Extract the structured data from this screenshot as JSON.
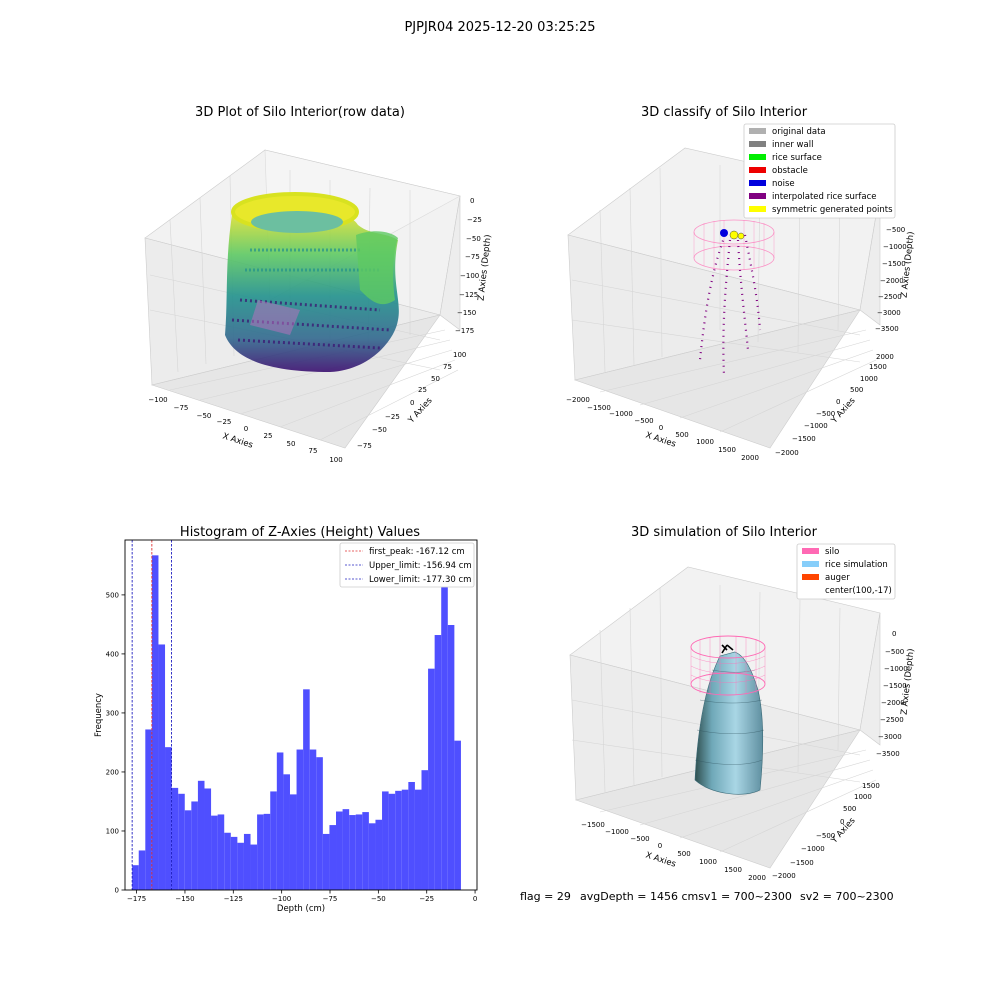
{
  "suptitle": "PJPJR04 2025-12-20 03:25:25",
  "footer": {
    "flag": "flag = 29",
    "avg": "avgDepth = 1456 cmsv1 = 700~2300",
    "sv2": "sv2 = 700~2300"
  },
  "colors": {
    "bar": "#4b4bff",
    "peak_line": "#e03030",
    "limit_line": "#2020c0",
    "silo": "#ff69b4",
    "rice": "#87cefa",
    "auger": "#ff4500",
    "pane": "#f2f2f2",
    "grid": "#d4d4d4"
  },
  "chart_data": [
    {
      "type": "scatter",
      "title": "3D Plot of Silo Interior(row data)",
      "xlabel": "X Axies",
      "ylabel": "Y Axies",
      "zlabel": "Z Axies (Depth)",
      "xticks": [
        "−100",
        "−75",
        "−50",
        "−25",
        "0",
        "25",
        "50",
        "75",
        "100"
      ],
      "yticks": [
        "−75",
        "−50",
        "−25",
        "0",
        "25",
        "50",
        "75",
        "100"
      ],
      "zticks": [
        "0",
        "−25",
        "−50",
        "−75",
        "−100",
        "−125",
        "−150",
        "−175"
      ],
      "colormap": "viridis"
    },
    {
      "type": "scatter",
      "title": "3D classify of Silo Interior",
      "xlabel": "X Axies",
      "ylabel": "Y Axies",
      "zlabel": "Z Axies (Depth)",
      "xticks": [
        "−2000",
        "−1500",
        "−1000",
        "−500",
        "0",
        "500",
        "1000",
        "1500",
        "2000"
      ],
      "yticks": [
        "−2000",
        "−1500",
        "−1000",
        "−500",
        "0",
        "500",
        "1000",
        "1500",
        "2000"
      ],
      "zticks": [
        "−500",
        "−1000",
        "−1500",
        "−2000",
        "−2500",
        "−3000",
        "−3500"
      ],
      "legend": [
        {
          "label": "original data",
          "color": "#b0b0b0"
        },
        {
          "label": "inner wall",
          "color": "#808080"
        },
        {
          "label": "rice surface",
          "color": "#00ee00"
        },
        {
          "label": "obstacle",
          "color": "#ee0000"
        },
        {
          "label": "noise",
          "color": "#0000dd"
        },
        {
          "label": "interpolated rice surface",
          "color": "#800080"
        },
        {
          "label": "symmetric generated points",
          "color": "#ffff00"
        }
      ],
      "legend_position": "top-right"
    },
    {
      "type": "bar",
      "title": "Histogram of Z-Axies (Height) Values",
      "xlabel": "Depth (cm)",
      "ylabel": "Frequency",
      "xlim": [
        -181,
        1
      ],
      "ylim": [
        0,
        593
      ],
      "xticks": [
        -175,
        -150,
        -125,
        -100,
        -75,
        -50,
        -25,
        0
      ],
      "xtick_labels": [
        "−175",
        "−150",
        "−125",
        "−100",
        "−75",
        "−50",
        "−25",
        "0"
      ],
      "yticks": [
        0,
        100,
        200,
        300,
        400,
        500
      ],
      "yticks_labels": [
        "0",
        "100",
        "200",
        "300",
        "400",
        "500"
      ],
      "bin_start": -177.3,
      "bin_width": 3.4,
      "values": [
        42,
        67,
        272,
        567,
        416,
        242,
        173,
        163,
        135,
        150,
        185,
        172,
        126,
        128,
        97,
        90,
        80,
        95,
        77,
        128,
        129,
        167,
        233,
        196,
        162,
        238,
        340,
        238,
        225,
        95,
        110,
        133,
        137,
        127,
        128,
        132,
        113,
        119,
        167,
        163,
        168,
        170,
        183,
        170,
        203,
        375,
        432,
        513,
        449,
        253
      ],
      "vlines": [
        {
          "label": "first_peak: -167.12 cm",
          "x": -167.12,
          "color": "#e03030"
        },
        {
          "label": "Upper_limit: -156.94 cm",
          "x": -156.94,
          "color": "#2020c0"
        },
        {
          "label": "Lower_limit: -177.30 cm",
          "x": -177.3,
          "color": "#2020c0"
        }
      ],
      "legend_position": "top-right"
    },
    {
      "type": "scatter",
      "title": "3D simulation of Silo Interior",
      "xlabel": "X Axies",
      "ylabel": "Y Axies",
      "zlabel": "Z Axies (Depth)",
      "xticks": [
        "−1500",
        "−1000",
        "−500",
        "0",
        "500",
        "1000",
        "1500",
        "2000"
      ],
      "yticks": [
        "−2000",
        "−1500",
        "−1000",
        "−500",
        "0",
        "500",
        "1000",
        "1500"
      ],
      "zticks": [
        "0",
        "−500",
        "−1000",
        "−1500",
        "−2000",
        "−2500",
        "−3000",
        "−3500"
      ],
      "legend": [
        {
          "label": "silo",
          "color": "#ff69b4"
        },
        {
          "label": "rice simulation",
          "color": "#87cefa"
        },
        {
          "label": "auger",
          "color": "#ff4500"
        },
        {
          "label": "center(100,-17)",
          "color": ""
        }
      ],
      "legend_position": "top-right"
    }
  ]
}
